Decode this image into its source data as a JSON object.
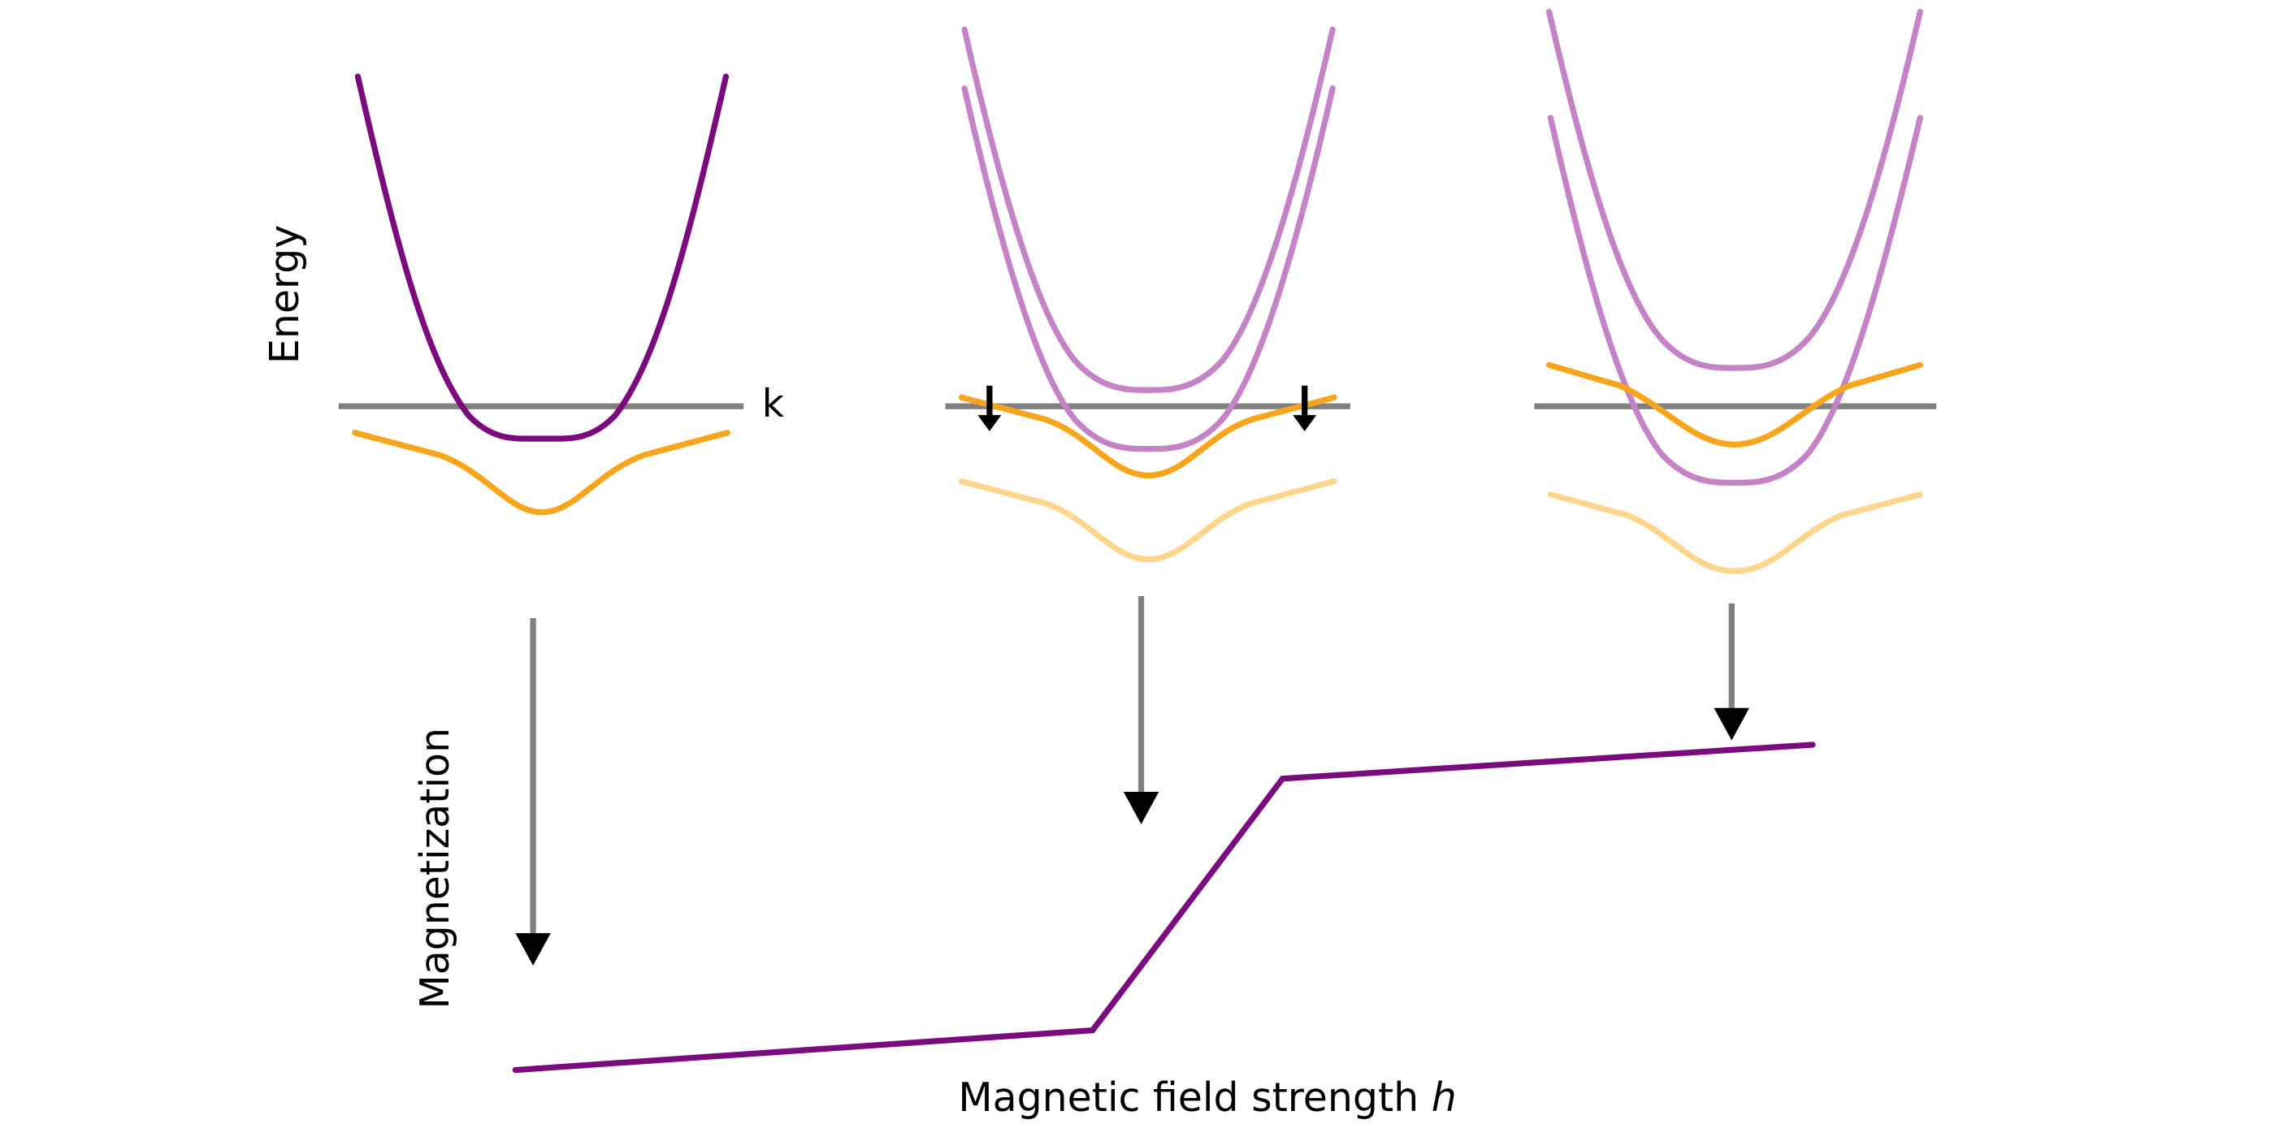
{
  "labels": {
    "energy": "Energy",
    "k": "k",
    "magnetization": "Magnetization",
    "field": "Magnetic field strength",
    "field_symbol": "h"
  }
}
